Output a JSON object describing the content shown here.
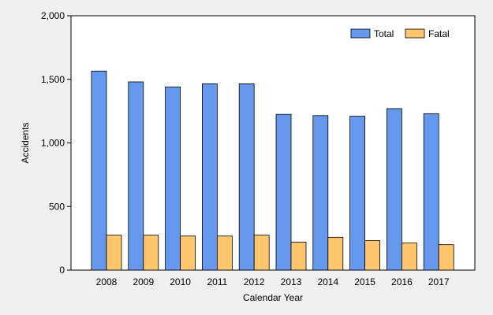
{
  "chart_data": {
    "type": "bar",
    "categories": [
      "2008",
      "2009",
      "2010",
      "2011",
      "2012",
      "2013",
      "2014",
      "2015",
      "2016",
      "2017"
    ],
    "series": [
      {
        "name": "Total",
        "color": "#6699ee",
        "values": [
          1565,
          1480,
          1440,
          1465,
          1465,
          1225,
          1215,
          1210,
          1270,
          1230
        ]
      },
      {
        "name": "Fatal",
        "color": "#ffc66e",
        "values": [
          275,
          275,
          268,
          268,
          275,
          220,
          258,
          232,
          213,
          200
        ]
      }
    ],
    "xlabel": "Calendar Year",
    "ylabel": "Accidents",
    "ylim": [
      0,
      2000
    ],
    "yticks": [
      0,
      500,
      1000,
      1500,
      2000
    ],
    "ytick_labels": [
      "0",
      "500",
      "1,000",
      "1,500",
      "2,000"
    ],
    "grid": false,
    "legend_position": "top-right"
  }
}
